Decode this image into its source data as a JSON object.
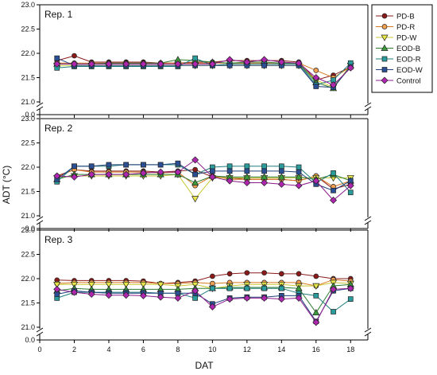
{
  "chart_data": {
    "type": "line",
    "xlabel": "DAT",
    "ylabel": "ADT (°C)",
    "xlim": [
      0,
      19
    ],
    "x_ticks": [
      "0",
      "2",
      "4",
      "6",
      "8",
      "10",
      "12",
      "14",
      "16",
      "18"
    ],
    "y_ticks": [
      "21.0",
      "21.5",
      "22.0",
      "22.5",
      "23.0"
    ],
    "y_break_label": "0.0",
    "ylim": [
      21.0,
      23.0
    ],
    "x": [
      1,
      2,
      3,
      4,
      5,
      6,
      7,
      8,
      9,
      10,
      11,
      12,
      13,
      14,
      15,
      16,
      17,
      18
    ],
    "legend": [
      {
        "name": "PD-B",
        "marker": "circle",
        "color": "#8b1a1a",
        "fill": "#8b1a1a"
      },
      {
        "name": "PD-R",
        "marker": "circle",
        "color": "#d97a1f",
        "fill": "#f0a050"
      },
      {
        "name": "PD-W",
        "marker": "triangle-down",
        "color": "#c8c832",
        "fill": "#e6e64a"
      },
      {
        "name": "EOD-B",
        "marker": "triangle-up",
        "color": "#2e7d32",
        "fill": "#3c9b3c"
      },
      {
        "name": "EOD-R",
        "marker": "square",
        "color": "#1f7c7c",
        "fill": "#2a9c9c"
      },
      {
        "name": "EOD-W",
        "marker": "square",
        "color": "#1f3f7a",
        "fill": "#2a4f95"
      },
      {
        "name": "Control",
        "marker": "diamond",
        "color": "#8b1a8b",
        "fill": "#b026b0"
      }
    ],
    "panels": [
      {
        "label": "Rep. 1",
        "series": [
          {
            "name": "PD-B",
            "values": [
              21.85,
              21.95,
              21.82,
              21.82,
              21.82,
              21.82,
              21.8,
              21.8,
              21.82,
              21.82,
              21.85,
              21.85,
              21.85,
              21.85,
              21.82,
              21.45,
              21.55,
              21.72
            ]
          },
          {
            "name": "PD-R",
            "values": [
              21.8,
              21.8,
              21.8,
              21.8,
              21.8,
              21.8,
              21.8,
              21.8,
              21.8,
              21.8,
              21.8,
              21.8,
              21.8,
              21.8,
              21.8,
              21.65,
              21.5,
              21.72
            ]
          },
          {
            "name": "PD-W",
            "values": [
              21.75,
              21.75,
              21.75,
              21.75,
              21.75,
              21.75,
              21.75,
              21.75,
              21.75,
              21.75,
              21.75,
              21.75,
              21.75,
              21.75,
              21.75,
              21.45,
              21.3,
              21.75
            ]
          },
          {
            "name": "EOD-B",
            "values": [
              21.78,
              21.78,
              21.78,
              21.8,
              21.8,
              21.8,
              21.8,
              21.87,
              21.85,
              21.82,
              21.8,
              21.82,
              21.82,
              21.8,
              21.8,
              21.4,
              21.28,
              21.75
            ]
          },
          {
            "name": "EOD-R",
            "values": [
              21.7,
              21.73,
              21.73,
              21.73,
              21.73,
              21.73,
              21.73,
              21.73,
              21.9,
              21.75,
              21.78,
              21.78,
              21.78,
              21.78,
              21.78,
              21.35,
              21.45,
              21.8
            ]
          },
          {
            "name": "EOD-W",
            "values": [
              21.9,
              21.75,
              21.75,
              21.75,
              21.75,
              21.75,
              21.75,
              21.75,
              21.75,
              21.75,
              21.75,
              21.75,
              21.75,
              21.75,
              21.75,
              21.32,
              21.3,
              21.72
            ]
          },
          {
            "name": "Control",
            "values": [
              21.78,
              21.78,
              21.78,
              21.78,
              21.78,
              21.78,
              21.78,
              21.78,
              21.78,
              21.78,
              21.87,
              21.82,
              21.87,
              21.82,
              21.8,
              21.5,
              21.35,
              21.7
            ]
          }
        ]
      },
      {
        "label": "Rep. 2",
        "series": [
          {
            "name": "PD-B",
            "values": [
              21.82,
              21.95,
              21.92,
              21.92,
              21.92,
              21.92,
              21.9,
              21.92,
              21.95,
              21.8,
              21.78,
              21.75,
              21.75,
              21.75,
              21.72,
              21.82,
              21.55,
              21.65
            ]
          },
          {
            "name": "PD-R",
            "values": [
              21.8,
              21.95,
              21.9,
              21.9,
              21.9,
              21.9,
              21.88,
              21.9,
              21.62,
              21.82,
              21.75,
              21.75,
              21.75,
              21.75,
              21.72,
              21.82,
              21.6,
              21.72
            ]
          },
          {
            "name": "PD-W",
            "values": [
              21.78,
              21.82,
              21.82,
              21.82,
              21.82,
              21.82,
              21.82,
              21.85,
              21.35,
              21.78,
              21.78,
              21.78,
              21.78,
              21.78,
              21.78,
              21.78,
              21.78,
              21.78
            ]
          },
          {
            "name": "EOD-B",
            "values": [
              21.75,
              21.85,
              21.85,
              21.85,
              21.85,
              21.85,
              21.85,
              21.85,
              21.68,
              21.82,
              21.8,
              21.8,
              21.8,
              21.8,
              21.8,
              21.75,
              21.85,
              21.72
            ]
          },
          {
            "name": "EOD-R",
            "values": [
              21.7,
              22.02,
              22.02,
              22.02,
              22.05,
              22.05,
              22.05,
              22.05,
              21.85,
              22.0,
              22.02,
              22.02,
              22.02,
              22.02,
              22.0,
              21.68,
              21.88,
              21.48
            ]
          },
          {
            "name": "EOD-W",
            "values": [
              21.75,
              22.02,
              22.02,
              22.05,
              22.05,
              22.05,
              22.05,
              22.08,
              21.85,
              21.92,
              21.92,
              21.92,
              21.92,
              21.92,
              21.9,
              21.65,
              21.52,
              21.72
            ]
          },
          {
            "name": "Control",
            "values": [
              21.82,
              21.8,
              21.85,
              21.85,
              21.85,
              21.88,
              21.9,
              21.9,
              22.15,
              21.8,
              21.72,
              21.68,
              21.68,
              21.65,
              21.62,
              21.72,
              21.32,
              21.62
            ]
          }
        ]
      },
      {
        "label": "Rep. 3",
        "series": [
          {
            "name": "PD-B",
            "values": [
              21.97,
              21.96,
              21.96,
              21.96,
              21.96,
              21.95,
              21.9,
              21.92,
              21.95,
              22.05,
              22.1,
              22.12,
              22.12,
              22.1,
              22.1,
              22.05,
              22.0,
              22.0
            ]
          },
          {
            "name": "PD-R",
            "values": [
              21.9,
              21.92,
              21.92,
              21.92,
              21.92,
              21.92,
              21.9,
              21.9,
              21.92,
              21.9,
              21.92,
              21.92,
              21.92,
              21.92,
              21.92,
              21.85,
              21.98,
              21.95
            ]
          },
          {
            "name": "PD-W",
            "values": [
              21.88,
              21.88,
              21.88,
              21.88,
              21.88,
              21.88,
              21.88,
              21.85,
              21.88,
              21.8,
              21.85,
              21.88,
              21.88,
              21.88,
              21.85,
              21.85,
              21.92,
              21.9
            ]
          },
          {
            "name": "EOD-B",
            "values": [
              21.75,
              21.8,
              21.78,
              21.78,
              21.78,
              21.78,
              21.78,
              21.78,
              21.8,
              21.8,
              21.82,
              21.82,
              21.82,
              21.82,
              21.8,
              21.3,
              21.85,
              21.88
            ]
          },
          {
            "name": "EOD-R",
            "values": [
              21.6,
              21.72,
              21.72,
              21.72,
              21.72,
              21.72,
              21.7,
              21.7,
              21.6,
              21.8,
              21.8,
              21.8,
              21.8,
              21.8,
              21.7,
              21.65,
              21.32,
              21.58
            ]
          },
          {
            "name": "EOD-W",
            "values": [
              21.68,
              21.75,
              21.72,
              21.7,
              21.7,
              21.7,
              21.7,
              21.7,
              21.7,
              21.48,
              21.6,
              21.62,
              21.62,
              21.65,
              21.65,
              21.12,
              21.75,
              21.8
            ]
          },
          {
            "name": "Control",
            "values": [
              21.78,
              21.72,
              21.68,
              21.66,
              21.66,
              21.65,
              21.62,
              21.6,
              21.75,
              21.42,
              21.58,
              21.6,
              21.6,
              21.58,
              21.6,
              21.1,
              21.78,
              21.8
            ]
          }
        ]
      }
    ]
  }
}
